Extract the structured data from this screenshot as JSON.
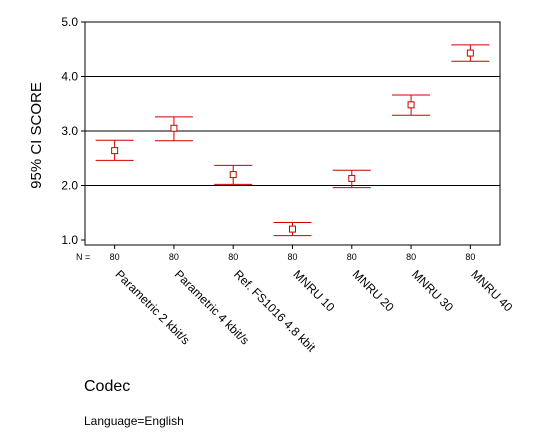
{
  "chart_data": {
    "type": "errorbar",
    "title": "",
    "xlabel": "Codec",
    "ylabel": "95% CI SCORE",
    "ylim": [
      1.0,
      5.0
    ],
    "yticks": [
      "1.0",
      "2.0",
      "3.0",
      "4.0",
      "5.0"
    ],
    "grid": "horizontal",
    "n_label": "N =",
    "categories": [
      "Parametric 2 kbit/s",
      "Parametric 4 kbit/s",
      "Ref. FS1016 4.8 kbit",
      "MNRU 10",
      "MNRU 20",
      "MNRU 30",
      "MNRU 40"
    ],
    "n": [
      "80",
      "80",
      "80",
      "80",
      "80",
      "80",
      "80"
    ],
    "mean": [
      2.64,
      3.05,
      2.2,
      1.2,
      2.13,
      3.48,
      4.43
    ],
    "ci_low": [
      2.46,
      2.82,
      2.02,
      1.08,
      1.96,
      3.29,
      4.28
    ],
    "ci_high": [
      2.83,
      3.26,
      2.37,
      1.32,
      2.28,
      3.66,
      4.58
    ],
    "color": "#cc0000"
  },
  "footer": {
    "note": "Language=English"
  }
}
